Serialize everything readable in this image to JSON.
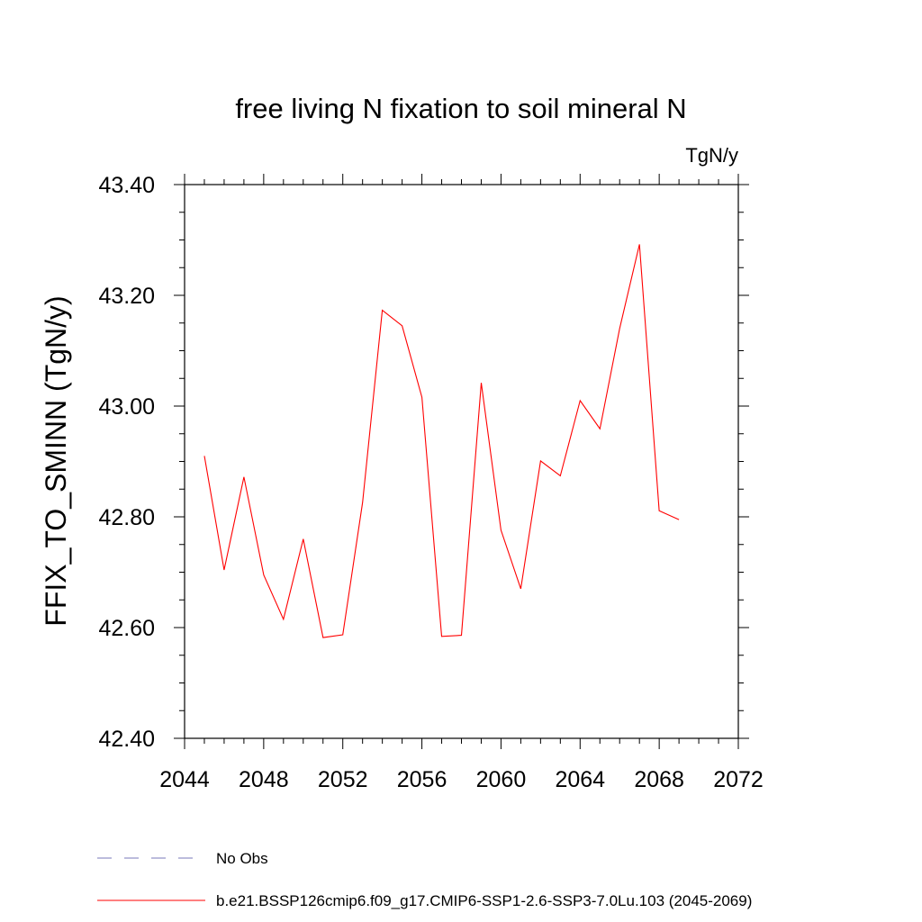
{
  "chart_data": {
    "type": "line",
    "title": "free living N fixation to soil mineral N",
    "units": "TgN/y",
    "ylabel": "FFIX_TO_SMINN  (TgN/y)",
    "xlabel": "",
    "xlim": [
      2044,
      2072
    ],
    "ylim": [
      42.4,
      43.4
    ],
    "x_ticks": [
      "2044",
      "2048",
      "2052",
      "2056",
      "2060",
      "2064",
      "2068",
      "2072"
    ],
    "y_ticks": [
      "42.40",
      "42.60",
      "42.80",
      "43.00",
      "43.20",
      "43.40"
    ],
    "grid": false,
    "series": [
      {
        "name": "b.e21.BSSP126cmip6.f09_g17.CMIP6-SSP1-2.6-SSP3-7.0Lu.103 (2045-2069)",
        "color": "#ff0000",
        "x": [
          2045,
          2046,
          2047,
          2048,
          2049,
          2050,
          2051,
          2052,
          2053,
          2054,
          2055,
          2056,
          2057,
          2058,
          2059,
          2060,
          2061,
          2062,
          2063,
          2064,
          2065,
          2066,
          2067,
          2068,
          2069
        ],
        "y": [
          42.91,
          42.704,
          42.872,
          42.695,
          42.615,
          42.76,
          42.582,
          42.587,
          42.826,
          43.173,
          43.145,
          43.016,
          42.584,
          42.586,
          43.042,
          42.776,
          42.67,
          42.901,
          42.874,
          43.01,
          42.959,
          43.14,
          43.292,
          42.811,
          42.795
        ]
      }
    ],
    "legend": [
      {
        "label": "No Obs",
        "style": "dashed",
        "color": "#7a7ab8"
      },
      {
        "label": "b.e21.BSSP126cmip6.f09_g17.CMIP6-SSP1-2.6-SSP3-7.0Lu.103 (2045-2069)",
        "style": "solid",
        "color": "#ff0000"
      }
    ],
    "legend_position": "bottom-left"
  }
}
